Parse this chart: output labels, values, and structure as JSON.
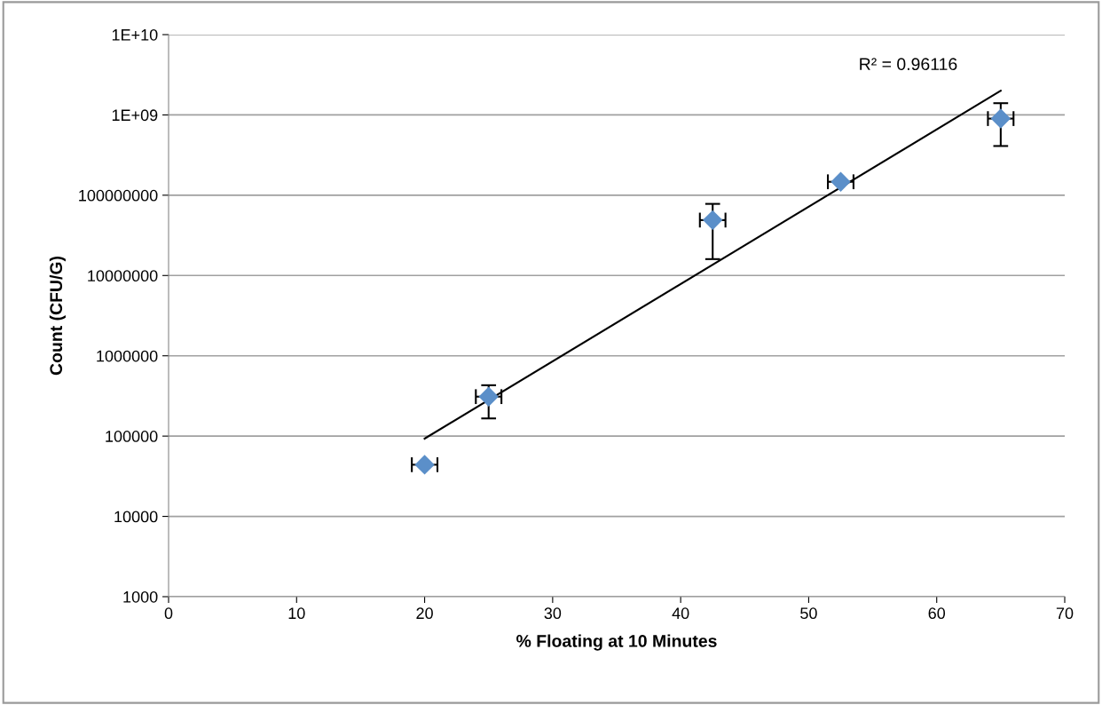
{
  "chart_data": {
    "type": "scatter",
    "xlabel": "% Floating at 10 Minutes",
    "ylabel": "Count (CFU/G)",
    "log": "y",
    "grid": "y",
    "marker": "diamond",
    "xlim": [
      0,
      70
    ],
    "xticks": [
      0,
      10,
      20,
      30,
      40,
      50,
      60,
      70
    ],
    "ylim": [
      1000,
      10000000000
    ],
    "yticks": [
      {
        "value": 1000,
        "label": "1000"
      },
      {
        "value": 10000,
        "label": "10000"
      },
      {
        "value": 100000,
        "label": "100000"
      },
      {
        "value": 1000000,
        "label": "1000000"
      },
      {
        "value": 10000000,
        "label": "10000000"
      },
      {
        "value": 100000000,
        "label": "100000000"
      },
      {
        "value": 1000000000,
        "label": "1E+09"
      },
      {
        "value": 10000000000,
        "label": "1E+10"
      }
    ],
    "annotations": [
      "R² = 0.96116"
    ],
    "series": [
      {
        "color": "#5b8fc9",
        "x": [
          20,
          25,
          42.5,
          52.5,
          65
        ],
        "values": [
          44000,
          310000,
          49000000,
          147000000,
          900000000
        ],
        "errors": [
          null,
          [
            166000,
            430000
          ],
          [
            16000000,
            78000000
          ],
          null,
          [
            410000000,
            1400000000
          ]
        ],
        "xerrors": [
          [
            19,
            21
          ],
          [
            24,
            26
          ],
          [
            41.5,
            43.5
          ],
          [
            51.5,
            53.5
          ],
          [
            64,
            66
          ]
        ]
      },
      {
        "type": "line",
        "color": "#000000",
        "marker": "none",
        "x": [
          20,
          65
        ],
        "values": [
          93000,
          2000000000
        ]
      }
    ]
  }
}
